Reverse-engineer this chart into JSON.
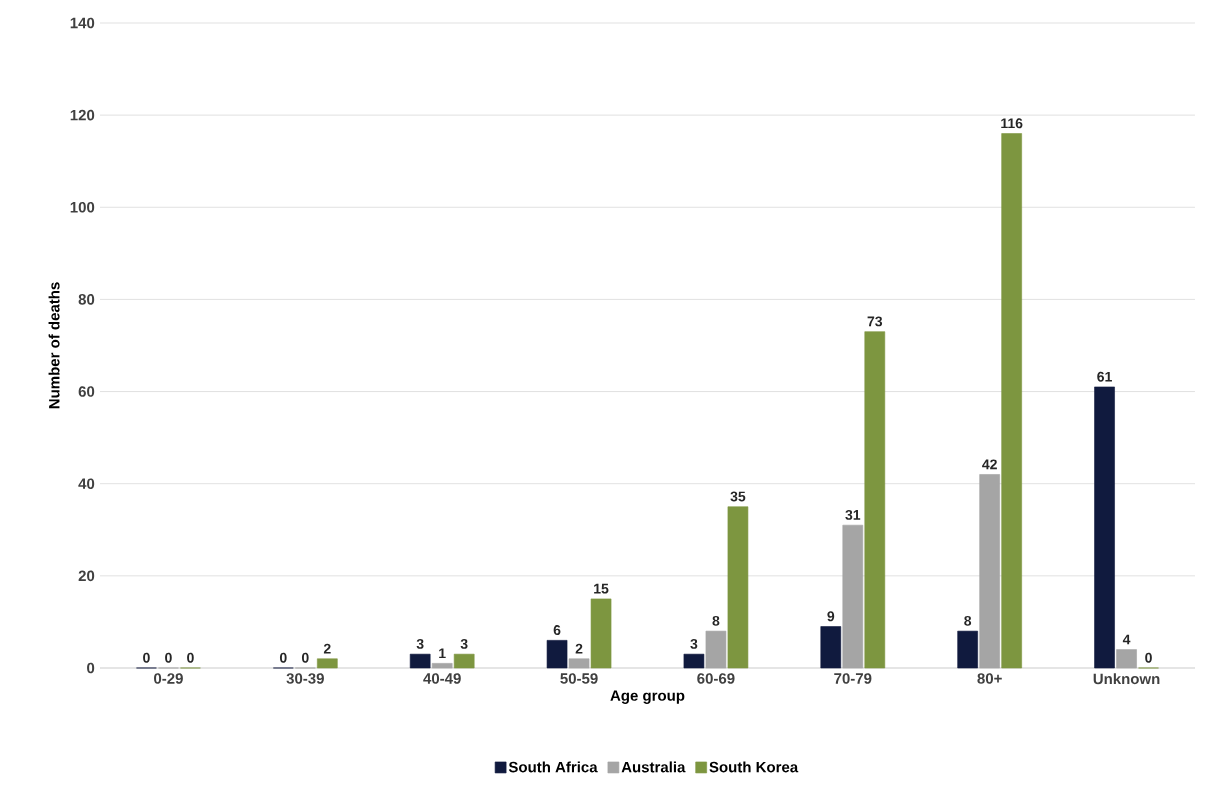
{
  "chart_data": {
    "type": "bar",
    "xlabel": "Age group",
    "ylabel": "Number of deaths",
    "categories": [
      "0-29",
      "30-39",
      "40-49",
      "50-59",
      "60-69",
      "70-79",
      "80+",
      "Unknown"
    ],
    "series": [
      {
        "name": "South Africa",
        "color": "#101a3e",
        "values": [
          0,
          0,
          3,
          6,
          3,
          9,
          8,
          61
        ]
      },
      {
        "name": "Australia",
        "color": "#a5a5a5",
        "values": [
          0,
          0,
          1,
          2,
          8,
          31,
          42,
          4
        ]
      },
      {
        "name": "South Korea",
        "color": "#7d9640",
        "values": [
          0,
          2,
          3,
          15,
          35,
          73,
          116,
          0
        ]
      }
    ],
    "ylim": [
      0,
      140
    ],
    "yticks": [
      0,
      20,
      40,
      60,
      80,
      100,
      120,
      140
    ],
    "grid": "y",
    "legend": "bottom",
    "data_labels": true
  }
}
